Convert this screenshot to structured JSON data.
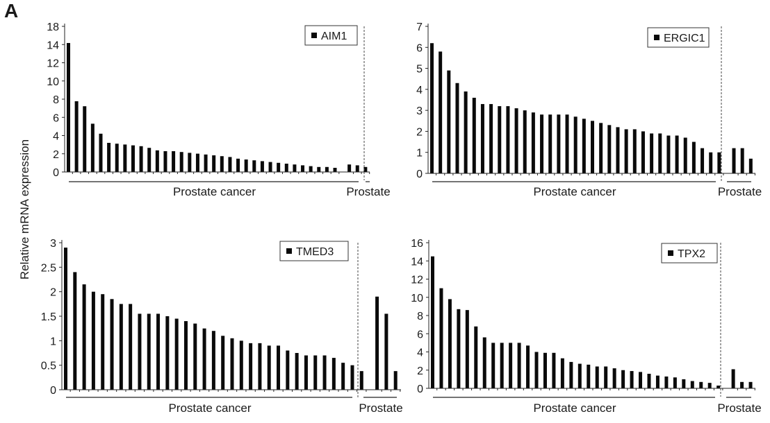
{
  "figure": {
    "panel_label": "A",
    "y_axis_title": "Relative mRNA expression"
  },
  "chart_data": [
    {
      "type": "bar",
      "legend": "AIM1",
      "yticks": [
        "0",
        "2",
        "4",
        "6",
        "8",
        "10",
        "12",
        "14",
        "18"
      ],
      "ylim": [
        0,
        17.5
      ],
      "groups": [
        "Prostate cancer",
        "Prostate"
      ],
      "series": [
        {
          "name": "Prostate cancer",
          "values": [
            15.5,
            8.5,
            7.9,
            5.8,
            4.6,
            3.5,
            3.4,
            3.3,
            3.2,
            3.1,
            2.9,
            2.6,
            2.5,
            2.5,
            2.4,
            2.3,
            2.2,
            2.1,
            2.0,
            1.9,
            1.8,
            1.6,
            1.5,
            1.4,
            1.3,
            1.2,
            1.1,
            1.0,
            0.9,
            0.8,
            0.7,
            0.6,
            0.6,
            0.5
          ]
        },
        {
          "name": "Prostate",
          "values": [
            0.9,
            0.8,
            0.6
          ]
        }
      ]
    },
    {
      "type": "bar",
      "legend": "ERGIC1",
      "yticks": [
        "0",
        "1",
        "2",
        "3",
        "4",
        "5",
        "6",
        "7"
      ],
      "ylim": [
        0,
        7
      ],
      "groups": [
        "Prostate cancer",
        "Prostate"
      ],
      "series": [
        {
          "name": "Prostate cancer",
          "values": [
            6.2,
            5.8,
            4.9,
            4.3,
            3.9,
            3.6,
            3.3,
            3.3,
            3.2,
            3.2,
            3.1,
            3.0,
            2.9,
            2.8,
            2.8,
            2.8,
            2.8,
            2.7,
            2.6,
            2.5,
            2.4,
            2.3,
            2.2,
            2.1,
            2.1,
            2.0,
            1.9,
            1.9,
            1.8,
            1.8,
            1.7,
            1.5,
            1.2,
            1.0,
            1.0
          ]
        },
        {
          "name": "Prostate",
          "values": [
            1.2,
            1.2,
            0.7
          ]
        }
      ]
    },
    {
      "type": "bar",
      "legend": "TMED3",
      "yticks": [
        "0",
        "0.5",
        "1",
        "1.5",
        "2",
        "2.5",
        "3"
      ],
      "ylim": [
        0,
        3
      ],
      "groups": [
        "Prostate cancer",
        "Prostate"
      ],
      "series": [
        {
          "name": "Prostate cancer",
          "values": [
            2.9,
            2.4,
            2.15,
            2.0,
            1.95,
            1.85,
            1.75,
            1.75,
            1.55,
            1.55,
            1.55,
            1.5,
            1.45,
            1.4,
            1.35,
            1.25,
            1.2,
            1.1,
            1.05,
            1.0,
            0.95,
            0.95,
            0.9,
            0.9,
            0.8,
            0.75,
            0.7,
            0.7,
            0.7,
            0.65,
            0.55,
            0.5,
            0.38
          ]
        },
        {
          "name": "Prostate",
          "values": [
            1.9,
            1.55,
            0.38
          ]
        }
      ]
    },
    {
      "type": "bar",
      "legend": "TPX2",
      "yticks": [
        "0",
        "2",
        "4",
        "6",
        "8",
        "10",
        "12",
        "14",
        "16"
      ],
      "ylim": [
        0,
        16
      ],
      "groups": [
        "Prostate cancer",
        "Prostate"
      ],
      "series": [
        {
          "name": "Prostate cancer",
          "values": [
            14.5,
            11.0,
            9.8,
            8.7,
            8.6,
            6.8,
            5.6,
            5.0,
            5.0,
            5.0,
            5.0,
            4.7,
            4.0,
            3.9,
            3.9,
            3.3,
            2.9,
            2.7,
            2.6,
            2.4,
            2.4,
            2.2,
            2.0,
            1.9,
            1.8,
            1.6,
            1.4,
            1.3,
            1.2,
            1.0,
            0.8,
            0.7,
            0.6,
            0.3
          ]
        },
        {
          "name": "Prostate",
          "values": [
            2.1,
            0.7,
            0.7
          ]
        }
      ]
    }
  ]
}
